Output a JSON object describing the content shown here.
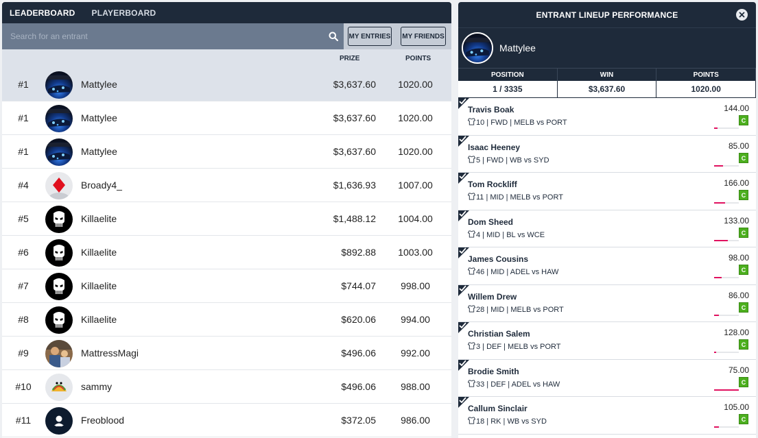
{
  "tabs": {
    "leaderboard": "LEADERBOARD",
    "playerboard": "PLAYERBOARD"
  },
  "search": {
    "placeholder": "Search for an entrant"
  },
  "filters": {
    "my_entries": "MY ENTRIES",
    "my_friends": "MY FRIENDS"
  },
  "columns": {
    "prize": "PRIZE",
    "points": "POINTS"
  },
  "leaderboard": [
    {
      "rank": "#1",
      "name": "Mattylee",
      "prize": "$3,637.60",
      "points": "1020.00",
      "avatar": "car-night"
    },
    {
      "rank": "#1",
      "name": "Mattylee",
      "prize": "$3,637.60",
      "points": "1020.00",
      "avatar": "car-night"
    },
    {
      "rank": "#1",
      "name": "Mattylee",
      "prize": "$3,637.60",
      "points": "1020.00",
      "avatar": "car-night"
    },
    {
      "rank": "#4",
      "name": "Broady4_",
      "prize": "$1,636.93",
      "points": "1007.00",
      "avatar": "diamond"
    },
    {
      "rank": "#5",
      "name": "Killaelite",
      "prize": "$1,488.12",
      "points": "1004.00",
      "avatar": "skull"
    },
    {
      "rank": "#6",
      "name": "Killaelite",
      "prize": "$892.88",
      "points": "1003.00",
      "avatar": "skull"
    },
    {
      "rank": "#7",
      "name": "Killaelite",
      "prize": "$744.07",
      "points": "998.00",
      "avatar": "skull"
    },
    {
      "rank": "#8",
      "name": "Killaelite",
      "prize": "$620.06",
      "points": "994.00",
      "avatar": "skull"
    },
    {
      "rank": "#9",
      "name": "MattressMagi",
      "prize": "$496.06",
      "points": "992.00",
      "avatar": "photo"
    },
    {
      "rank": "#10",
      "name": "sammy",
      "prize": "$496.06",
      "points": "988.00",
      "avatar": "taco"
    },
    {
      "rank": "#11",
      "name": "Freoblood",
      "prize": "$372.05",
      "points": "986.00",
      "avatar": "person"
    }
  ],
  "panel": {
    "title": "ENTRANT LINEUP PERFORMANCE",
    "username": "Mattylee",
    "stats_labels": {
      "position": "POSITION",
      "win": "WIN",
      "points": "POINTS"
    },
    "stats": {
      "position": "1 / 3335",
      "win": "$3,637.60",
      "points": "1020.00"
    },
    "badge": "C",
    "players": [
      {
        "name": "Travis Boak",
        "info": "10 | FWD | MELB vs PORT",
        "points": "144.00",
        "progress": 0.15
      },
      {
        "name": "Isaac Heeney",
        "info": "5 | FWD | WB vs SYD",
        "points": "85.00",
        "progress": 0.35
      },
      {
        "name": "Tom Rockliff",
        "info": "11 | MID | MELB vs PORT",
        "points": "166.00",
        "progress": 0.45
      },
      {
        "name": "Dom Sheed",
        "info": "4 | MID | BL vs WCE",
        "points": "133.00",
        "progress": 0.55
      },
      {
        "name": "James Cousins",
        "info": "46 | MID | ADEL vs HAW",
        "points": "98.00",
        "progress": 0.3
      },
      {
        "name": "Willem Drew",
        "info": "28 | MID | MELB vs PORT",
        "points": "86.00",
        "progress": 0.2
      },
      {
        "name": "Christian Salem",
        "info": "3 | DEF | MELB vs PORT",
        "points": "128.00",
        "progress": 0.08
      },
      {
        "name": "Brodie Smith",
        "info": "33 | DEF | ADEL vs HAW",
        "points": "75.00",
        "progress": 1.0
      },
      {
        "name": "Callum Sinclair",
        "info": "18 | RK | WB vs SYD",
        "points": "105.00",
        "progress": 0.2
      }
    ]
  }
}
